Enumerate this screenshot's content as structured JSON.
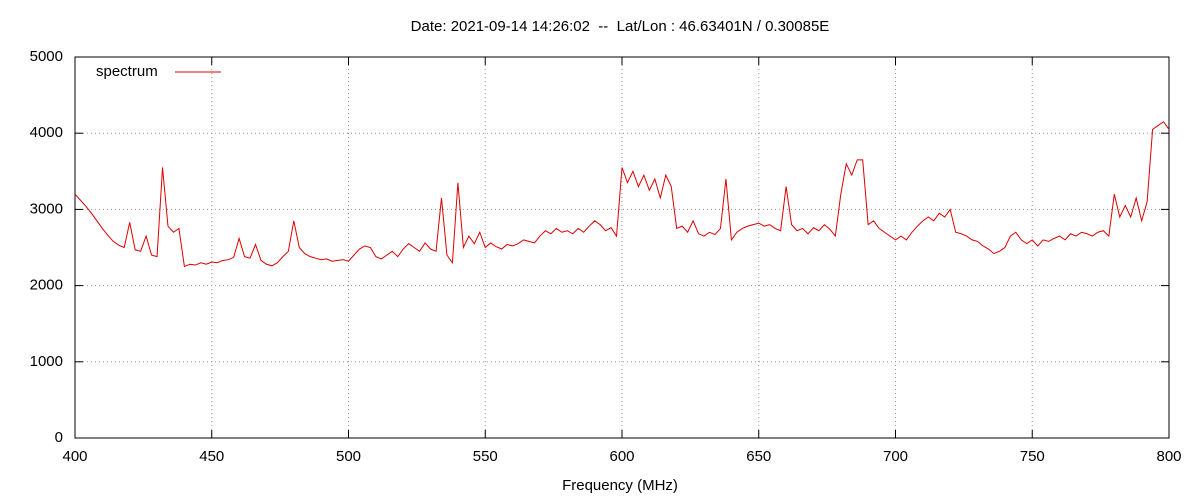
{
  "chart_data": {
    "type": "line",
    "title": "Date: 2021-09-14 14:26:02  --  Lat/Lon : 46.63401N / 0.30085E",
    "xlabel": "Frequency (MHz)",
    "x": [
      400,
      402,
      404,
      406,
      408,
      410,
      412,
      414,
      416,
      418,
      420,
      422,
      424,
      426,
      428,
      430,
      432,
      434,
      436,
      438,
      440,
      442,
      444,
      446,
      448,
      450,
      452,
      454,
      456,
      458,
      460,
      462,
      464,
      466,
      468,
      470,
      472,
      474,
      476,
      478,
      480,
      482,
      484,
      486,
      488,
      490,
      492,
      494,
      496,
      498,
      500,
      502,
      504,
      506,
      508,
      510,
      512,
      514,
      516,
      518,
      520,
      522,
      524,
      526,
      528,
      530,
      532,
      534,
      536,
      538,
      540,
      542,
      544,
      546,
      548,
      550,
      552,
      554,
      556,
      558,
      560,
      562,
      564,
      566,
      568,
      570,
      572,
      574,
      576,
      578,
      580,
      582,
      584,
      586,
      588,
      590,
      592,
      594,
      596,
      598,
      600,
      602,
      604,
      606,
      608,
      610,
      612,
      614,
      616,
      618,
      620,
      622,
      624,
      626,
      628,
      630,
      632,
      634,
      636,
      638,
      640,
      642,
      644,
      646,
      648,
      650,
      652,
      654,
      656,
      658,
      660,
      662,
      664,
      666,
      668,
      670,
      672,
      674,
      676,
      678,
      680,
      682,
      684,
      686,
      688,
      690,
      692,
      694,
      696,
      698,
      700,
      702,
      704,
      706,
      708,
      710,
      712,
      714,
      716,
      718,
      720,
      722,
      724,
      726,
      728,
      730,
      732,
      734,
      736,
      738,
      740,
      742,
      744,
      746,
      748,
      750,
      752,
      754,
      756,
      758,
      760,
      762,
      764,
      766,
      768,
      770,
      772,
      774,
      776,
      778,
      780,
      782,
      784,
      786,
      788,
      790,
      792,
      794,
      796,
      798,
      800
    ],
    "series": [
      {
        "name": "spectrum",
        "color": "#dd0000",
        "values": [
          3200,
          3120,
          3040,
          2950,
          2850,
          2750,
          2660,
          2580,
          2530,
          2500,
          2830,
          2470,
          2450,
          2650,
          2400,
          2380,
          3550,
          2780,
          2700,
          2750,
          2250,
          2280,
          2270,
          2300,
          2280,
          2310,
          2300,
          2330,
          2340,
          2370,
          2620,
          2380,
          2360,
          2540,
          2330,
          2280,
          2260,
          2300,
          2380,
          2450,
          2850,
          2500,
          2420,
          2380,
          2360,
          2340,
          2350,
          2320,
          2330,
          2340,
          2320,
          2400,
          2480,
          2520,
          2500,
          2380,
          2350,
          2400,
          2450,
          2380,
          2480,
          2550,
          2500,
          2450,
          2560,
          2480,
          2450,
          3150,
          2400,
          2300,
          3350,
          2500,
          2650,
          2550,
          2700,
          2500,
          2560,
          2510,
          2480,
          2540,
          2520,
          2550,
          2600,
          2580,
          2560,
          2650,
          2720,
          2680,
          2750,
          2700,
          2720,
          2680,
          2750,
          2700,
          2780,
          2850,
          2800,
          2720,
          2760,
          2650,
          3550,
          3350,
          3500,
          3300,
          3450,
          3250,
          3400,
          3150,
          3450,
          3300,
          2750,
          2780,
          2700,
          2850,
          2680,
          2650,
          2700,
          2670,
          2750,
          3400,
          2600,
          2700,
          2750,
          2780,
          2800,
          2820,
          2780,
          2800,
          2750,
          2720,
          3300,
          2800,
          2720,
          2750,
          2680,
          2760,
          2720,
          2800,
          2740,
          2650,
          3200,
          3600,
          3450,
          3650,
          3650,
          2800,
          2850,
          2750,
          2700,
          2650,
          2600,
          2650,
          2600,
          2700,
          2780,
          2850,
          2900,
          2850,
          2950,
          2900,
          3000,
          2700,
          2680,
          2650,
          2600,
          2580,
          2520,
          2480,
          2420,
          2450,
          2500,
          2650,
          2700,
          2600,
          2550,
          2600,
          2520,
          2600,
          2580,
          2620,
          2650,
          2600,
          2680,
          2650,
          2700,
          2680,
          2650,
          2700,
          2720,
          2650,
          3200,
          2900,
          3050,
          2900,
          3150,
          2850,
          3100,
          4050,
          4100,
          4150,
          4050
        ]
      }
    ],
    "xlim": [
      400,
      800
    ],
    "xticks": [
      400,
      450,
      500,
      550,
      600,
      650,
      700,
      750,
      800
    ],
    "ylim": [
      0,
      5000
    ],
    "yticks": [
      0,
      1000,
      2000,
      3000,
      4000,
      5000
    ],
    "grid": true,
    "legend": "top-left"
  }
}
